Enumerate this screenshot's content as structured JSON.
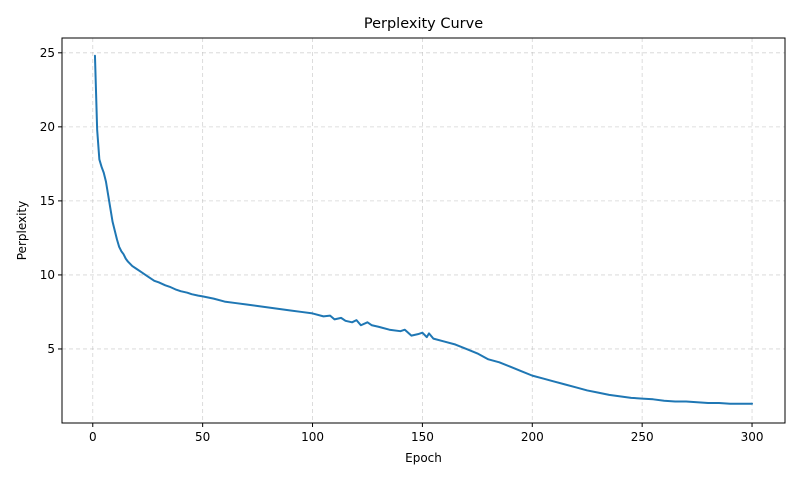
{
  "chart_data": {
    "type": "line",
    "title": "Perplexity Curve",
    "xlabel": "Epoch",
    "ylabel": "Perplexity",
    "xlim": [
      -14,
      315
    ],
    "ylim": [
      0.0,
      26.0
    ],
    "xticks": [
      0,
      50,
      100,
      150,
      200,
      250,
      300
    ],
    "yticks": [
      5,
      10,
      15,
      20,
      25
    ],
    "grid": true,
    "line_color": "#1f77b4",
    "series": [
      {
        "name": "Perplexity",
        "x": [
          1,
          2,
          3,
          4,
          5,
          6,
          7,
          8,
          9,
          10,
          11,
          12,
          13,
          14,
          15,
          16,
          18,
          20,
          22,
          25,
          28,
          30,
          33,
          35,
          38,
          40,
          43,
          45,
          48,
          50,
          55,
          60,
          65,
          70,
          75,
          80,
          85,
          90,
          95,
          100,
          105,
          108,
          110,
          113,
          115,
          118,
          120,
          122,
          125,
          127,
          130,
          135,
          140,
          142,
          145,
          148,
          150,
          152,
          153,
          155,
          160,
          165,
          170,
          175,
          180,
          185,
          190,
          195,
          200,
          205,
          210,
          215,
          220,
          225,
          230,
          235,
          240,
          245,
          250,
          255,
          260,
          265,
          270,
          275,
          280,
          285,
          290,
          295,
          300
        ],
        "y": [
          24.8,
          19.8,
          17.8,
          17.3,
          16.9,
          16.3,
          15.4,
          14.5,
          13.6,
          13.0,
          12.4,
          11.9,
          11.6,
          11.4,
          11.1,
          10.9,
          10.6,
          10.4,
          10.2,
          9.9,
          9.6,
          9.5,
          9.3,
          9.2,
          9.0,
          8.9,
          8.8,
          8.7,
          8.6,
          8.55,
          8.4,
          8.2,
          8.1,
          8.0,
          7.9,
          7.8,
          7.7,
          7.6,
          7.5,
          7.4,
          7.2,
          7.25,
          7.0,
          7.1,
          6.9,
          6.8,
          6.95,
          6.6,
          6.8,
          6.6,
          6.5,
          6.3,
          6.2,
          6.3,
          5.9,
          6.0,
          6.1,
          5.8,
          6.05,
          5.7,
          5.5,
          5.3,
          5.0,
          4.7,
          4.3,
          4.1,
          3.8,
          3.5,
          3.2,
          3.0,
          2.8,
          2.6,
          2.4,
          2.2,
          2.05,
          1.9,
          1.8,
          1.7,
          1.65,
          1.6,
          1.5,
          1.45,
          1.45,
          1.4,
          1.35,
          1.35,
          1.3,
          1.3,
          1.3
        ]
      }
    ]
  }
}
